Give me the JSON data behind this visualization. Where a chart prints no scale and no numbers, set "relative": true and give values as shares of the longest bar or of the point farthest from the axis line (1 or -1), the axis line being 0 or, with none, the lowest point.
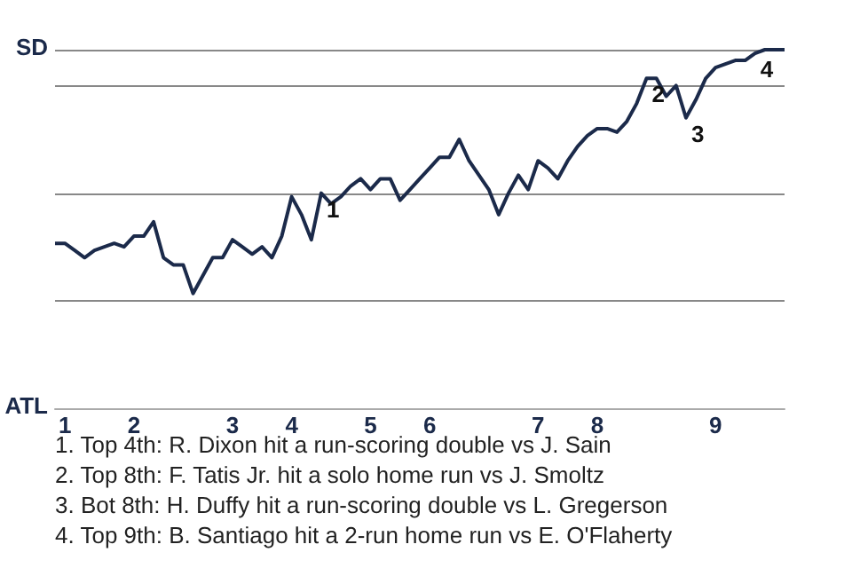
{
  "chart_data": {
    "type": "line",
    "color": "#1b2a4a",
    "marker": "none",
    "grid": "y",
    "relative": true,
    "categories": [
      null,
      "1",
      null,
      null,
      null,
      null,
      null,
      null,
      "2",
      null,
      null,
      null,
      null,
      null,
      null,
      null,
      null,
      null,
      "3",
      null,
      null,
      null,
      null,
      null,
      "4",
      null,
      null,
      null,
      null,
      null,
      null,
      null,
      "5",
      null,
      null,
      null,
      null,
      null,
      "6",
      null,
      null,
      null,
      null,
      null,
      null,
      null,
      null,
      null,
      null,
      "7",
      null,
      null,
      null,
      null,
      null,
      "8",
      null,
      null,
      null,
      null,
      null,
      null,
      null,
      null,
      null,
      null,
      null,
      "9",
      null,
      null,
      null,
      null,
      null,
      null,
      null
    ],
    "values": [
      0.46,
      0.46,
      0.44,
      0.42,
      0.44,
      0.45,
      0.46,
      0.45,
      0.48,
      0.48,
      0.52,
      0.42,
      0.4,
      0.4,
      0.32,
      0.37,
      0.42,
      0.42,
      0.47,
      0.45,
      0.43,
      0.45,
      0.42,
      0.48,
      0.59,
      0.54,
      0.47,
      0.6,
      0.57,
      0.59,
      0.62,
      0.64,
      0.61,
      0.64,
      0.64,
      0.58,
      0.61,
      0.64,
      0.67,
      0.7,
      0.7,
      0.75,
      0.69,
      0.65,
      0.61,
      0.54,
      0.6,
      0.65,
      0.61,
      0.69,
      0.67,
      0.64,
      0.69,
      0.73,
      0.76,
      0.78,
      0.78,
      0.77,
      0.8,
      0.85,
      0.92,
      0.92,
      0.87,
      0.9,
      0.81,
      0.86,
      0.92,
      0.95,
      0.96,
      0.97,
      0.97,
      0.99,
      1,
      1,
      1
    ],
    "annotations": [
      "SD",
      "ATL",
      {
        "text": "1",
        "y": 0.6
      },
      {
        "text": "2",
        "y": 0.92
      },
      {
        "text": "3",
        "y": 0.81
      },
      {
        "text": "4",
        "y": 0.99
      },
      "1. Top 4th: R. Dixon hit a run-scoring double vs J. Sain",
      "2. Top 8th: F. Tatis Jr. hit a solo home run vs J. Smoltz",
      "3. Bot 8th: H. Duffy hit a run-scoring double vs L. Gregerson",
      "4. Top 9th: B. Santiago hit a 2-run home run vs E. O'Flaherty"
    ]
  }
}
